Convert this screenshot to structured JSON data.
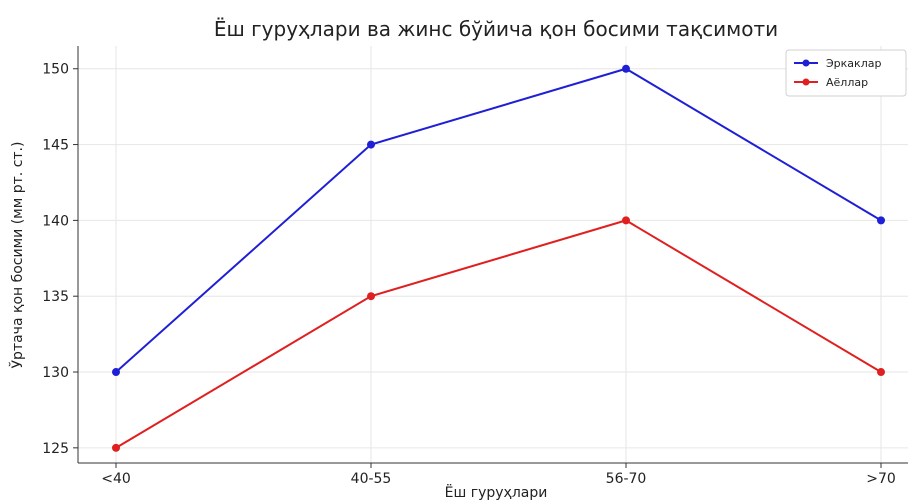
{
  "chart_data": {
    "type": "line",
    "title": "Ёш гуруҳлари ва жинс бўйича қон босими тақсимоти",
    "xlabel": "Ёш гуруҳлари",
    "ylabel": "Ўртача қон босими (мм рт. ст.)",
    "categories": [
      "<40",
      "40-55",
      "56-70",
      ">70"
    ],
    "series": [
      {
        "name": "Эркаклар",
        "values": [
          130,
          145,
          150,
          140
        ],
        "color": "#1f1fd6"
      },
      {
        "name": "Аёллар",
        "values": [
          125,
          135,
          140,
          130
        ],
        "color": "#e02020"
      }
    ],
    "ylim": [
      124,
      151.5
    ],
    "yticks": [
      125,
      130,
      135,
      140,
      145,
      150
    ],
    "grid": true,
    "legend_position": "top-right"
  }
}
